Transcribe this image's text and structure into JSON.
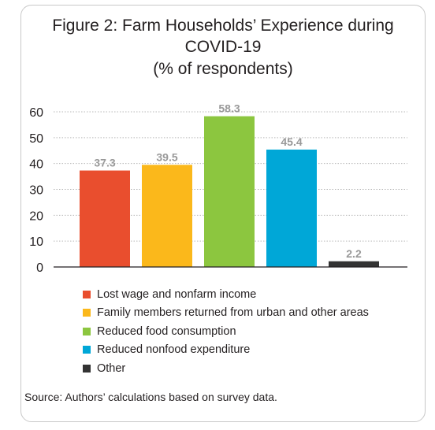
{
  "figure": {
    "title_line1": "Figure 2: Farm Households’ Experience during",
    "title_line2": "COVID-19",
    "subtitle": "(% of respondents)",
    "source": "Source: Authors’ calculations based on survey data."
  },
  "chart_data": {
    "type": "bar",
    "title": "Figure 2: Farm Households’ Experience during COVID-19",
    "subtitle": "(% of respondents)",
    "xlabel": "",
    "ylabel": "",
    "ylim": [
      0,
      60
    ],
    "yticks": [
      0,
      10,
      20,
      30,
      40,
      50,
      60
    ],
    "grid": true,
    "legend_position": "bottom",
    "categories": [
      "Lost wage and nonfarm income",
      "Family members returned from urban and other areas",
      "Reduced food consumption",
      "Reduced nonfood expenditure",
      "Other"
    ],
    "values": [
      37.3,
      39.5,
      58.3,
      45.4,
      2.2
    ],
    "value_labels": [
      "37.3",
      "39.5",
      "58.3",
      "45.4",
      "2.2"
    ],
    "colors": [
      "#e94e2e",
      "#fbb81b",
      "#8cc63f",
      "#00a7d7",
      "#333333"
    ],
    "label_color": "#999999",
    "grid_color": "#b8b8b8"
  }
}
